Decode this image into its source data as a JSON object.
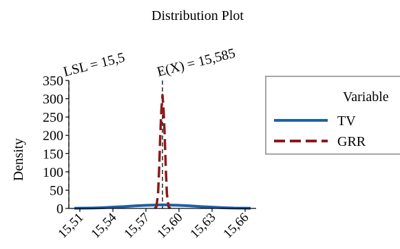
{
  "chart_data": {
    "type": "line",
    "title": "Distribution Plot",
    "xlabel": "",
    "ylabel": "Density",
    "xlim": [
      15.5,
      15.67
    ],
    "ylim": [
      0,
      350
    ],
    "x_ticks": [
      15.51,
      15.54,
      15.57,
      15.6,
      15.63,
      15.66
    ],
    "x_tick_labels": [
      "15,51",
      "15,54",
      "15,57",
      "15,60",
      "15,63",
      "15,66"
    ],
    "y_ticks": [
      0,
      50,
      100,
      150,
      200,
      250,
      300,
      350
    ],
    "y_tick_labels": [
      "0",
      "50",
      "100",
      "150",
      "200",
      "250",
      "300",
      "350"
    ],
    "grid": false,
    "reference_lines": [
      {
        "label": "LSL = 15,5",
        "x": 15.5
      },
      {
        "label": "E(X) = 15,585",
        "x": 15.585
      }
    ],
    "series": [
      {
        "name": "TV",
        "color": "#1f5fa8",
        "style": "solid",
        "x": [
          15.505,
          15.52,
          15.53,
          15.54,
          15.55,
          15.56,
          15.57,
          15.58,
          15.585,
          15.59,
          15.6,
          15.61,
          15.62,
          15.63,
          15.64,
          15.65,
          15.665
        ],
        "y": [
          0.5,
          1,
          2,
          3.5,
          5,
          7,
          8.5,
          9.5,
          10,
          9.5,
          8.5,
          7,
          5,
          3.5,
          2,
          1,
          0.5
        ]
      },
      {
        "name": "GRR",
        "color": "#8b1a1a",
        "style": "dashed",
        "x": [
          15.578,
          15.5795,
          15.581,
          15.582,
          15.583,
          15.584,
          15.585,
          15.586,
          15.587,
          15.588,
          15.589,
          15.5905,
          15.592
        ],
        "y": [
          0,
          5,
          40,
          110,
          200,
          270,
          310,
          270,
          200,
          110,
          40,
          5,
          0
        ]
      }
    ],
    "legend": {
      "title": "Variable",
      "position": "right",
      "entries": [
        "TV",
        "GRR"
      ]
    }
  }
}
